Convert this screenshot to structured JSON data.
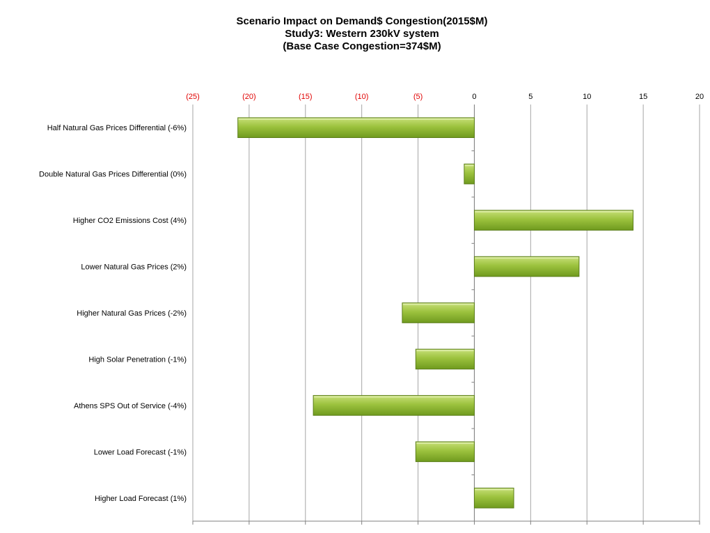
{
  "chart_data": {
    "type": "bar",
    "orientation": "horizontal",
    "title": [
      "Scenario Impact on Demand$ Congestion(2015$M)",
      "Study3: Western 230kV system",
      "(Base Case Congestion=374$M)"
    ],
    "xlabel": "",
    "ylabel": "",
    "xlim": [
      -25,
      20
    ],
    "x_ticks": [
      -25,
      -20,
      -15,
      -10,
      -5,
      0,
      5,
      10,
      15,
      20
    ],
    "x_tick_labels": [
      "(25)",
      "(20)",
      "(15)",
      "(10)",
      "(5)",
      "0",
      "5",
      "10",
      "15",
      "20"
    ],
    "grid": "vertical",
    "legend": "none",
    "categories": [
      "Half Natural Gas Prices Differential (-6%)",
      "Double Natural Gas Prices Differential (0%)",
      "Higher CO2 Emissions Cost (4%)",
      "Lower Natural Gas Prices (2%)",
      "Higher Natural Gas Prices (-2%)",
      "High Solar Penetration (-1%)",
      "Athens SPS Out of Service (-4%)",
      "Lower Load Forecast (-1%)",
      "Higher Load Forecast (1%)"
    ],
    "values": [
      -21.0,
      -0.9,
      14.1,
      9.3,
      -6.4,
      -5.2,
      -14.3,
      -5.2,
      3.5
    ],
    "colors": {
      "bar_fill_top": "#c8e07a",
      "bar_fill_mid": "#9cc23e",
      "bar_fill_bottom": "#6f9a1e",
      "bar_stroke": "#5a7d18",
      "negative_tick_label": "#e00000",
      "positive_tick_label": "#000000",
      "grid": "#a6a6a6",
      "axis": "#808080"
    }
  }
}
